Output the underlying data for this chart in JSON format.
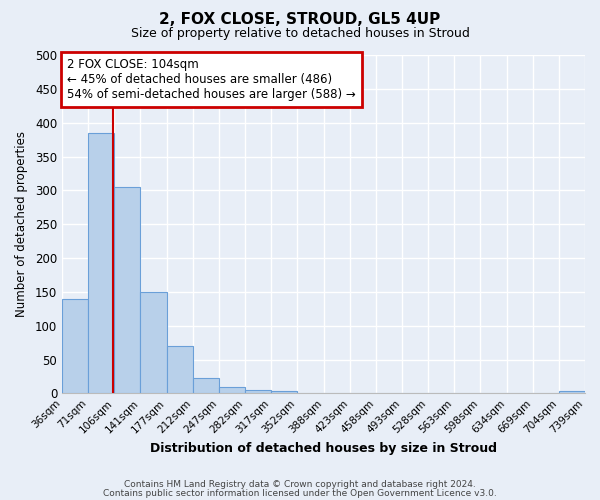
{
  "title": "2, FOX CLOSE, STROUD, GL5 4UP",
  "subtitle": "Size of property relative to detached houses in Stroud",
  "xlabel": "Distribution of detached houses by size in Stroud",
  "ylabel": "Number of detached properties",
  "footnote1": "Contains HM Land Registry data © Crown copyright and database right 2024.",
  "footnote2": "Contains public sector information licensed under the Open Government Licence v3.0.",
  "bar_edges": [
    36,
    71,
    106,
    141,
    177,
    212,
    247,
    282,
    317,
    352,
    388,
    423,
    458,
    493,
    528,
    563,
    598,
    634,
    669,
    704,
    739
  ],
  "bar_heights": [
    140,
    385,
    305,
    150,
    70,
    22,
    9,
    5,
    3,
    0,
    0,
    0,
    0,
    0,
    0,
    0,
    0,
    0,
    0,
    3
  ],
  "bar_color": "#b8d0ea",
  "bar_edge_color": "#6a9fd8",
  "vline_x": 104,
  "vline_color": "#cc0000",
  "ylim": [
    0,
    500
  ],
  "xlim": [
    36,
    739
  ],
  "yticks": [
    0,
    50,
    100,
    150,
    200,
    250,
    300,
    350,
    400,
    450,
    500
  ],
  "xtick_labels": [
    "36sqm",
    "71sqm",
    "106sqm",
    "141sqm",
    "177sqm",
    "212sqm",
    "247sqm",
    "282sqm",
    "317sqm",
    "352sqm",
    "388sqm",
    "423sqm",
    "458sqm",
    "493sqm",
    "528sqm",
    "563sqm",
    "598sqm",
    "634sqm",
    "669sqm",
    "704sqm",
    "739sqm"
  ],
  "annotation_title": "2 FOX CLOSE: 104sqm",
  "annotation_line1": "← 45% of detached houses are smaller (486)",
  "annotation_line2": "54% of semi-detached houses are larger (588) →",
  "annotation_box_color": "#ffffff",
  "annotation_box_edge_color": "#cc0000",
  "bg_color": "#e8eef7",
  "grid_color": "#ffffff",
  "plot_bg_color": "#e8eef7"
}
